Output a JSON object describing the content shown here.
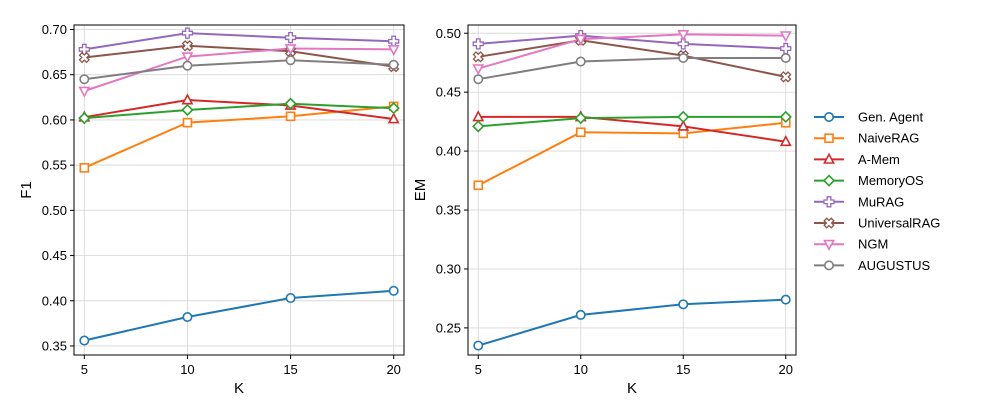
{
  "chart_data": [
    {
      "type": "line",
      "xlabel": "K",
      "ylabel": "F1",
      "x": [
        5,
        10,
        15,
        20
      ],
      "xticks": [
        5,
        10,
        15,
        20
      ],
      "xlim": [
        4.5,
        20.5
      ],
      "ylim": [
        0.34,
        0.705
      ],
      "yticks": [
        0.35,
        0.4,
        0.45,
        0.5,
        0.55,
        0.6,
        0.65,
        0.7
      ],
      "ytick_labels": [
        "0.35",
        "0.40",
        "0.45",
        "0.50",
        "0.55",
        "0.60",
        "0.65",
        "0.70"
      ],
      "grid": true,
      "series": [
        {
          "name": "Gen. Agent",
          "values": [
            0.356,
            0.382,
            0.403,
            0.411
          ]
        },
        {
          "name": "NaiveRAG",
          "values": [
            0.547,
            0.597,
            0.604,
            0.615
          ]
        },
        {
          "name": "A-Mem",
          "values": [
            0.603,
            0.622,
            0.616,
            0.601
          ]
        },
        {
          "name": "MemoryOS",
          "values": [
            0.602,
            0.611,
            0.618,
            0.613
          ]
        },
        {
          "name": "MuRAG",
          "values": [
            0.678,
            0.696,
            0.691,
            0.687
          ]
        },
        {
          "name": "UniversalRAG",
          "values": [
            0.669,
            0.682,
            0.676,
            0.659
          ]
        },
        {
          "name": "NGM",
          "values": [
            0.632,
            0.67,
            0.679,
            0.678
          ]
        },
        {
          "name": "AUGUSTUS",
          "values": [
            0.645,
            0.66,
            0.666,
            0.661
          ]
        }
      ]
    },
    {
      "type": "line",
      "xlabel": "K",
      "ylabel": "EM",
      "x": [
        5,
        10,
        15,
        20
      ],
      "xticks": [
        5,
        10,
        15,
        20
      ],
      "xlim": [
        4.5,
        20.5
      ],
      "ylim": [
        0.227,
        0.507
      ],
      "yticks": [
        0.25,
        0.3,
        0.35,
        0.4,
        0.45,
        0.5
      ],
      "ytick_labels": [
        "0.25",
        "0.30",
        "0.35",
        "0.40",
        "0.45",
        "0.50"
      ],
      "grid": true,
      "series": [
        {
          "name": "Gen. Agent",
          "values": [
            0.235,
            0.261,
            0.27,
            0.274
          ]
        },
        {
          "name": "NaiveRAG",
          "values": [
            0.371,
            0.416,
            0.415,
            0.424
          ]
        },
        {
          "name": "A-Mem",
          "values": [
            0.429,
            0.429,
            0.421,
            0.408
          ]
        },
        {
          "name": "MemoryOS",
          "values": [
            0.421,
            0.428,
            0.429,
            0.429
          ]
        },
        {
          "name": "MuRAG",
          "values": [
            0.491,
            0.498,
            0.491,
            0.487
          ]
        },
        {
          "name": "UniversalRAG",
          "values": [
            0.48,
            0.494,
            0.481,
            0.463
          ]
        },
        {
          "name": "NGM",
          "values": [
            0.47,
            0.495,
            0.499,
            0.498
          ]
        },
        {
          "name": "AUGUSTUS",
          "values": [
            0.461,
            0.476,
            0.479,
            0.479
          ]
        }
      ]
    }
  ],
  "legend": {
    "placement": "right",
    "entries": [
      {
        "name": "Gen. Agent",
        "color": "#1f77b4",
        "marker": "circle"
      },
      {
        "name": "NaiveRAG",
        "color": "#ff7f0e",
        "marker": "square"
      },
      {
        "name": "A-Mem",
        "color": "#d62728",
        "marker": "triangle-up"
      },
      {
        "name": "MemoryOS",
        "color": "#2ca02c",
        "marker": "diamond"
      },
      {
        "name": "MuRAG",
        "color": "#9467bd",
        "marker": "plus"
      },
      {
        "name": "UniversalRAG",
        "color": "#8c564b",
        "marker": "x"
      },
      {
        "name": "NGM",
        "color": "#e377c2",
        "marker": "triangle-down"
      },
      {
        "name": "AUGUSTUS",
        "color": "#7f7f7f",
        "marker": "circle"
      }
    ]
  }
}
